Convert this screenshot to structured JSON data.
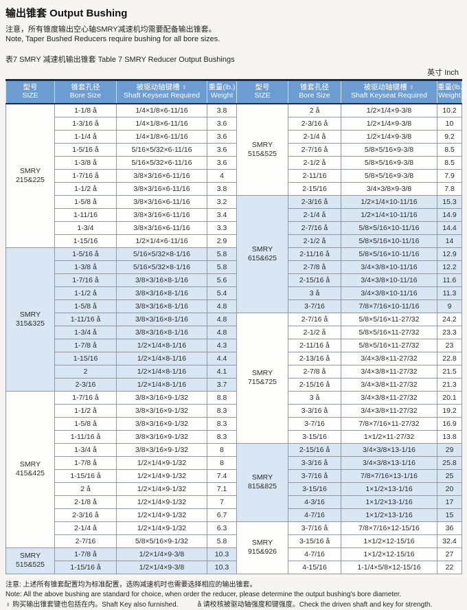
{
  "page": {
    "title": "输出锥套 Output Bushing",
    "note_zh": "注意，所有锥度输出空心轴SMRY减速机均需要配备输出锥套。",
    "note_en": "Note, Taper Bushed Reducers require bushing for all bore sizes.",
    "table_caption": "表7 SMRY 减速机输出锥套 Table 7 SMRY Reducer Output Bushings",
    "unit_label": "英寸  Inch"
  },
  "colors": {
    "header_blue": "#6b9cd2",
    "group_shade_blue": "#d8e7f3",
    "header_rule_navy": "#1b2a55"
  },
  "table": {
    "headers": [
      {
        "zh": "型号",
        "en": "SIZE"
      },
      {
        "zh": "锥套孔径",
        "en": "Bore Size"
      },
      {
        "zh": "被驱动轴键槽 ♀",
        "en": "Shaft Keyseat Required"
      },
      {
        "zh": "重量(lb.)",
        "en": "Weight"
      }
    ],
    "left_groups": [
      {
        "size_lines": [
          "SMRY",
          "215&225"
        ],
        "shaded": false,
        "rows": [
          [
            "1-1/8 å",
            "1/4×1/8×6-11/16",
            "3.8"
          ],
          [
            "1-3/16 å",
            "1/4×1/8×6-11/16",
            "3.6"
          ],
          [
            "1-1/4 å",
            "1/4×1/8×6-11/16",
            "3.6"
          ],
          [
            "1-5/16 å",
            "5/16×5/32×6-11/16",
            "3.6"
          ],
          [
            "1-3/8 å",
            "5/16×5/32×6-11/16",
            "3.6"
          ],
          [
            "1-7/16 å",
            "3/8×3/16×6-11/16",
            "4"
          ],
          [
            "1-1/2 å",
            "3/8×3/16×6-11/16",
            "3.8"
          ],
          [
            "1-5/8 å",
            "3/8×3/16×6-11/16",
            "3.2"
          ],
          [
            "1-11/16",
            "3/8×3/16×6-11/16",
            "3.4"
          ],
          [
            "1-3/4",
            "3/8×3/16×6-11/16",
            "3.3"
          ],
          [
            "1-15/16",
            "1/2×1/4×6-11/16",
            "2.9"
          ]
        ]
      },
      {
        "size_lines": [
          "SMRY",
          "315&325"
        ],
        "shaded": true,
        "rows": [
          [
            "1-5/16 å",
            "5/16×5/32×8-1/16",
            "5.8"
          ],
          [
            "1-3/8 å",
            "5/16×5/32×8-1/16",
            "5.8"
          ],
          [
            "1-7/16 å",
            "3/8×3/16×8-1/16",
            "5.6"
          ],
          [
            "1-1/2 å",
            "3/8×3/16×8-1/16",
            "5.4"
          ],
          [
            "1-5/8 å",
            "3/8×3/16×8-1/16",
            "4.8"
          ],
          [
            "1-11/16 å",
            "3/8×3/16×8-1/16",
            "4.8"
          ],
          [
            "1-3/4 å",
            "3/8×3/16×8-1/16",
            "4.8"
          ],
          [
            "1-7/8 å",
            "1/2×1/4×8-1/16",
            "4.3"
          ],
          [
            "1-15/16",
            "1/2×1/4×8-1/16",
            "4.4"
          ],
          [
            "2",
            "1/2×1/4×8-1/16",
            "4.1"
          ],
          [
            "2-3/16",
            "1/2×1/4×8-1/16",
            "3.7"
          ]
        ]
      },
      {
        "size_lines": [
          "SMRY",
          "415&425"
        ],
        "shaded": false,
        "rows": [
          [
            "1-7/16 å",
            "3/8×3/16×9-1/32",
            "8.8"
          ],
          [
            "1-1/2 å",
            "3/8×3/16×9-1/32",
            "8.3"
          ],
          [
            "1-5/8 å",
            "3/8×3/16×9-1/32",
            "8.3"
          ],
          [
            "1-11/16 å",
            "3/8×3/16×9-1/32",
            "8.3"
          ],
          [
            "1-3/4 å",
            "3/8×3/16×9-1/32",
            "8"
          ],
          [
            "1-7/8 å",
            "1/2×1/4×9-1/32",
            "8"
          ],
          [
            "1-15/16 å",
            "1/2×1/4×9-1/32",
            "7.4"
          ],
          [
            "2 å",
            "1/2×1/4×9-1/32",
            "7.1"
          ],
          [
            "2-1/8 å",
            "1/2×1/4×9-1/32",
            "7"
          ],
          [
            "2-3/16 å",
            "1/2×1/4×9-1/32",
            "6.7"
          ],
          [
            "2-1/4 å",
            "1/2×1/4×9-1/32",
            "6.3"
          ],
          [
            "2-7/16",
            "5/8×5/16×9-1/32",
            "5.8"
          ]
        ]
      },
      {
        "size_lines": [
          "SMRY",
          "515&525"
        ],
        "shaded": true,
        "rows": [
          [
            "1-7/8 å",
            "1/2×1/4×9-3/8",
            "10.3"
          ],
          [
            "1-15/16 å",
            "1/2×1/4×9-3/8",
            "10.3"
          ]
        ]
      }
    ],
    "right_groups": [
      {
        "size_lines": [
          "SMRY",
          "515&525"
        ],
        "shaded": false,
        "rows": [
          [
            "2 å",
            "1/2×1/4×9-3/8",
            "10.2"
          ],
          [
            "2-3/16 å",
            "1/2×1/4×9-3/8",
            "10"
          ],
          [
            "2-1/4 å",
            "1/2×1/4×9-3/8",
            "9.2"
          ],
          [
            "2-7/16 å",
            "5/8×5/16×9-3/8",
            "8.5"
          ],
          [
            "2-1/2 å",
            "5/8×5/16×9-3/8",
            "8.5"
          ],
          [
            "2-11/16",
            "5/8×5/16×9-3/8",
            "7.9"
          ],
          [
            "2-15/16",
            "3/4×3/8×9-3/8",
            "7.8"
          ]
        ]
      },
      {
        "size_lines": [
          "SMRY",
          "615&625"
        ],
        "shaded": true,
        "rows": [
          [
            "2-3/16 å",
            "1/2×1/4×10-11/16",
            "15.3"
          ],
          [
            "2-1/4 å",
            "1/2×1/4×10-11/16",
            "14.9"
          ],
          [
            "2-7/16 å",
            "5/8×5/16×10-11/16",
            "14.4"
          ],
          [
            "2-1/2 å",
            "5/8×5/16×10-11/16",
            "14"
          ],
          [
            "2-11/16 å",
            "5/8×5/16×10-11/16",
            "12.9"
          ],
          [
            "2-7/8 å",
            "3/4×3/8×10-11/16",
            "12.2"
          ],
          [
            "2-15/16 å",
            "3/4×3/8×10-11/16",
            "11.6"
          ],
          [
            "3 å",
            "3/4×3/8×10-11/16",
            "11.3"
          ],
          [
            "3-7/16",
            "7/8×7/16×10-11/16",
            "9"
          ]
        ]
      },
      {
        "size_lines": [
          "SMRY",
          "715&725"
        ],
        "shaded": false,
        "rows": [
          [
            "2-7/16 å",
            "5/8×5/16×11-27/32",
            "24.2"
          ],
          [
            "2-1/2 å",
            "5/8×5/16×11-27/32",
            "23.3"
          ],
          [
            "2-11/16 å",
            "5/8×5/16×11-27/32",
            "23"
          ],
          [
            "2-13/16 å",
            "3/4×3/8×11-27/32",
            "22.8"
          ],
          [
            "2-7/8 å",
            "3/4×3/8×11-27/32",
            "21.5"
          ],
          [
            "2-15/16 å",
            "3/4×3/8×11-27/32",
            "21.3"
          ],
          [
            "3 å",
            "3/4×3/8×11-27/32",
            "20.1"
          ],
          [
            "3-3/16 å",
            "3/4×3/8×11-27/32",
            "19.2"
          ],
          [
            "3-7/16",
            "7/8×7/16×11-27/32",
            "16.9"
          ],
          [
            "3-15/16",
            "1×1/2×11-27/32",
            "13.8"
          ]
        ]
      },
      {
        "size_lines": [
          "SMRY",
          "815&825"
        ],
        "shaded": true,
        "rows": [
          [
            "2-15/16 å",
            "3/4×3/8×13-1/16",
            "29"
          ],
          [
            "3-3/16 å",
            "3/4×3/8×13-1/16",
            "25.8"
          ],
          [
            "3-7/16 å",
            "7/8×7/16×13-1/16",
            "25"
          ],
          [
            "3-15/16",
            "1×1/2×13-1/16",
            "20"
          ],
          [
            "4-3/16",
            "1×1/2×13-1/16",
            "17"
          ],
          [
            "4-7/16",
            "1×1/2×13-1/16",
            "15"
          ]
        ]
      },
      {
        "size_lines": [
          "SMRY",
          "915&926"
        ],
        "shaded": false,
        "rows": [
          [
            "3-7/16 å",
            "7/8×7/16×12-15/16",
            "36"
          ],
          [
            "3-15/16 å",
            "1×1/2×12-15/16",
            "32.4"
          ],
          [
            "4-7/16",
            "1×1/2×12-15/16",
            "27"
          ],
          [
            "4-15/16",
            "1-1/4×5/8×12-15/16",
            "22"
          ]
        ]
      }
    ]
  },
  "footnotes": {
    "note_zh": "注意: 上述所有锥套配置均为标准配置，选购减速机时也需要选择相应的输出锥套。",
    "note_en": "Note: All the above bushing are standard for choice, when order the reducer, please determine the output bushing's bore diameter.",
    "key_note": "♀ 购买输出锥套键也包括在内。Shaft Key also furnished.",
    "strength_note": "å 请校核被驱动轴强度和键强度。Check the driven shaft and key for strength."
  }
}
